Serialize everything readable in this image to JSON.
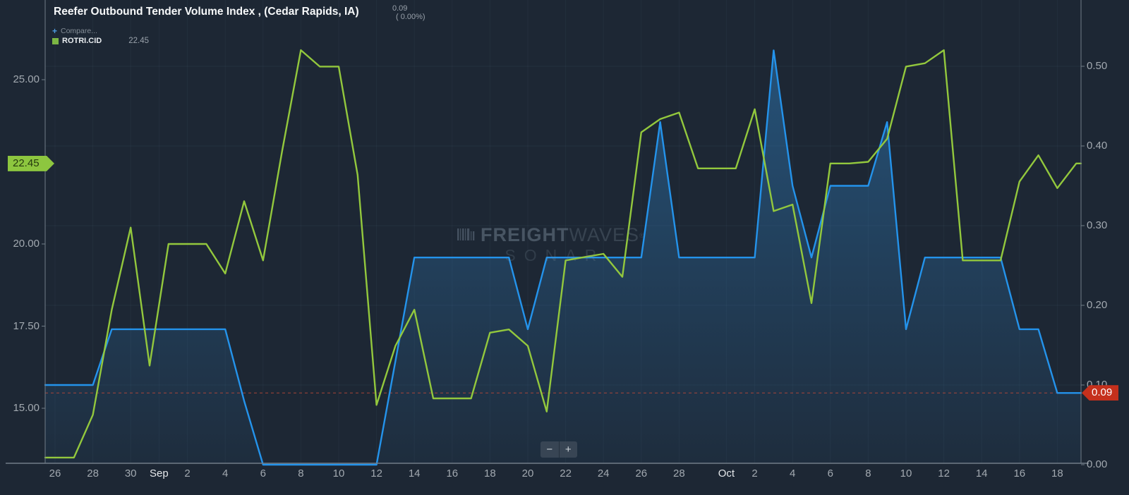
{
  "header": {
    "title": "Reefer Outbound Tender Volume Index , (Cedar Rapids, IA)",
    "quote_value": "0.09",
    "quote_change": "( 0.00%)"
  },
  "legend": {
    "compare_icon": "+",
    "compare_label": "Compare...",
    "series_symbol": "ROTRI.CID",
    "series_value": "22.45"
  },
  "watermark": {
    "brand_bold": "FREIGHT",
    "brand_light": "WAVES",
    "registered": "®",
    "subtitle": "SONAR"
  },
  "controls": {
    "zoom_out_label": "−",
    "zoom_in_label": "+"
  },
  "colors": {
    "background": "#1d2734",
    "green_line": "#93c83d",
    "blue_line": "#2493eb",
    "blue_fill": "#2e7ab8",
    "red_reference": "#c14a38",
    "green_tag_bg": "#8dc63f",
    "red_tag_bg": "#c5301c",
    "axis_line": "#717d88",
    "axis_text": "#a2a9b0",
    "month_text": "#e4e7ea"
  },
  "axes": {
    "left": {
      "tick_labels": [
        "25.00",
        "20.00",
        "17.50",
        "15.00"
      ],
      "tick_values": [
        25,
        20,
        17.5,
        15
      ],
      "current_tag": "22.45",
      "current_value": 22.45
    },
    "right": {
      "tick_labels": [
        "0.50",
        "0.40",
        "0.30",
        "0.20",
        "0.10",
        "0.00"
      ],
      "tick_values": [
        0.5,
        0.4,
        0.3,
        0.2,
        0.1,
        0
      ],
      "current_tag": "0.09",
      "current_value": 0.09
    },
    "x": {
      "labels": [
        {
          "text": "26",
          "i": 0
        },
        {
          "text": "28",
          "i": 2
        },
        {
          "text": "30",
          "i": 4
        },
        {
          "text": "Sep",
          "i": 5.5,
          "month": true
        },
        {
          "text": "2",
          "i": 7
        },
        {
          "text": "4",
          "i": 9
        },
        {
          "text": "6",
          "i": 11
        },
        {
          "text": "8",
          "i": 13
        },
        {
          "text": "10",
          "i": 15
        },
        {
          "text": "12",
          "i": 17
        },
        {
          "text": "14",
          "i": 19
        },
        {
          "text": "16",
          "i": 21
        },
        {
          "text": "18",
          "i": 23
        },
        {
          "text": "20",
          "i": 25
        },
        {
          "text": "22",
          "i": 27
        },
        {
          "text": "24",
          "i": 29
        },
        {
          "text": "26",
          "i": 31
        },
        {
          "text": "28",
          "i": 33
        },
        {
          "text": "Oct",
          "i": 35.5,
          "month": true
        },
        {
          "text": "2",
          "i": 37
        },
        {
          "text": "4",
          "i": 39
        },
        {
          "text": "6",
          "i": 41
        },
        {
          "text": "8",
          "i": 43
        },
        {
          "text": "10",
          "i": 45
        },
        {
          "text": "12",
          "i": 47
        },
        {
          "text": "14",
          "i": 49
        },
        {
          "text": "16",
          "i": 51
        },
        {
          "text": "18",
          "i": 53
        }
      ]
    }
  },
  "chart_data": {
    "type": "line",
    "x_dates": [
      "Aug 26",
      "Aug 27",
      "Aug 28",
      "Aug 29",
      "Aug 30",
      "Aug 31",
      "Sep 1",
      "Sep 2",
      "Sep 3",
      "Sep 4",
      "Sep 5",
      "Sep 6",
      "Sep 7",
      "Sep 8",
      "Sep 9",
      "Sep 10",
      "Sep 11",
      "Sep 12",
      "Sep 13",
      "Sep 14",
      "Sep 15",
      "Sep 16",
      "Sep 17",
      "Sep 18",
      "Sep 19",
      "Sep 20",
      "Sep 21",
      "Sep 22",
      "Sep 23",
      "Sep 24",
      "Sep 25",
      "Sep 26",
      "Sep 27",
      "Sep 28",
      "Sep 29",
      "Sep 30",
      "Oct 1",
      "Oct 2",
      "Oct 3",
      "Oct 4",
      "Oct 5",
      "Oct 6",
      "Oct 7",
      "Oct 8",
      "Oct 9",
      "Oct 10",
      "Oct 11",
      "Oct 12",
      "Oct 13",
      "Oct 14",
      "Oct 15",
      "Oct 16",
      "Oct 17",
      "Oct 18",
      "Oct 19"
    ],
    "series": [
      {
        "name": "Reefer Outbound Tender Volume Index",
        "axis": "right",
        "style": "area",
        "color": "#2493eb",
        "last_value": 0.09,
        "values": [
          0.1,
          0.1,
          0.1,
          0.17,
          0.17,
          0.17,
          0.17,
          0.17,
          0.17,
          0.17,
          0.08,
          0,
          0,
          0,
          0,
          0,
          0,
          0,
          0.13,
          0.26,
          0.26,
          0.26,
          0.26,
          0.26,
          0.26,
          0.17,
          0.26,
          0.26,
          0.26,
          0.26,
          0.26,
          0.26,
          0.43,
          0.26,
          0.26,
          0.26,
          0.26,
          0.26,
          0.52,
          0.35,
          0.26,
          0.35,
          0.35,
          0.35,
          0.43,
          0.17,
          0.26,
          0.26,
          0.26,
          0.26,
          0.26,
          0.17,
          0.17,
          0.09,
          0.09
        ]
      },
      {
        "name": "ROTRI.CID",
        "axis": "left",
        "style": "line",
        "color": "#93c83d",
        "last_value": 22.45,
        "values": [
          13.5,
          13.5,
          14.8,
          18.0,
          20.5,
          16.3,
          20.0,
          20.0,
          20.0,
          19.1,
          21.3,
          19.5,
          22.8,
          25.9,
          25.4,
          25.4,
          22.1,
          15.1,
          16.9,
          18.0,
          15.3,
          15.3,
          15.3,
          17.3,
          17.4,
          16.9,
          14.9,
          19.5,
          19.6,
          19.7,
          19.0,
          23.4,
          23.8,
          24.0,
          22.3,
          22.3,
          22.3,
          24.1,
          21.0,
          21.2,
          18.2,
          22.45,
          22.45,
          22.5,
          23.2,
          25.4,
          25.5,
          25.9,
          19.5,
          19.5,
          19.5,
          21.9,
          22.7,
          21.7,
          22.45
        ]
      }
    ],
    "left_axis_range": [
      13.3,
      27.4
    ],
    "right_axis_range": [
      0,
      0.582
    ],
    "reference_line": {
      "axis": "right",
      "value": 0.09,
      "style": "dashed",
      "color": "#c14a38"
    },
    "grid": {
      "vertical": true,
      "horizontal": true,
      "legend_position": "top-left"
    }
  }
}
